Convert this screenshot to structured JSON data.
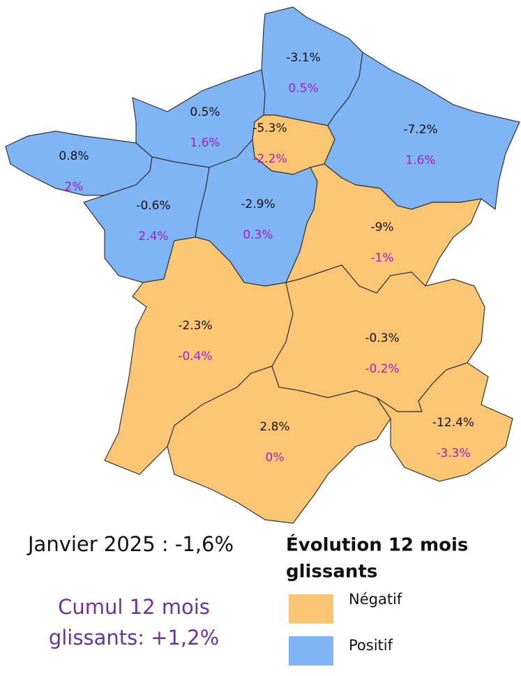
{
  "regions": [
    {
      "month": "-3.1%",
      "cumul": "0.5%",
      "color": "#7fb4f5"
    },
    {
      "month": "0.5%",
      "cumul": "1.6%",
      "color": "#7fb4f5"
    },
    {
      "month": "-5.3%",
      "cumul": "-2.2%",
      "color": "#fbc674"
    },
    {
      "month": "-7.2%",
      "cumul": "1.6%",
      "color": "#7fb4f5"
    },
    {
      "month": "0.8%",
      "cumul": "2%",
      "color": "#7fb4f5"
    },
    {
      "month": "-0.6%",
      "cumul": "2.4%",
      "color": "#7fb4f5"
    },
    {
      "month": "-2.9%",
      "cumul": "0.3%",
      "color": "#7fb4f5"
    },
    {
      "month": "-9%",
      "cumul": "-1%",
      "color": "#fbc674"
    },
    {
      "month": "-2.3%",
      "cumul": "-0.4%",
      "color": "#fbc674"
    },
    {
      "month": "-0.3%",
      "cumul": "-0.2%",
      "color": "#fbc674"
    },
    {
      "month": "2.8%",
      "cumul": "0%",
      "color": "#fbc674"
    },
    {
      "month": "-12.4%",
      "cumul": "-3.3%",
      "color": "#fbc674"
    }
  ],
  "summary": {
    "month": "Janvier 2025 : -1,6%",
    "cumul": [
      "Cumul 12 mois",
      "glissants: +1,2%"
    ]
  },
  "legend": {
    "title": [
      "Évolution 12 mois",
      "glissants"
    ],
    "items": [
      {
        "label": "Négatif",
        "color": "#fbc674"
      },
      {
        "label": "Positif",
        "color": "#7fb4f5"
      }
    ]
  }
}
